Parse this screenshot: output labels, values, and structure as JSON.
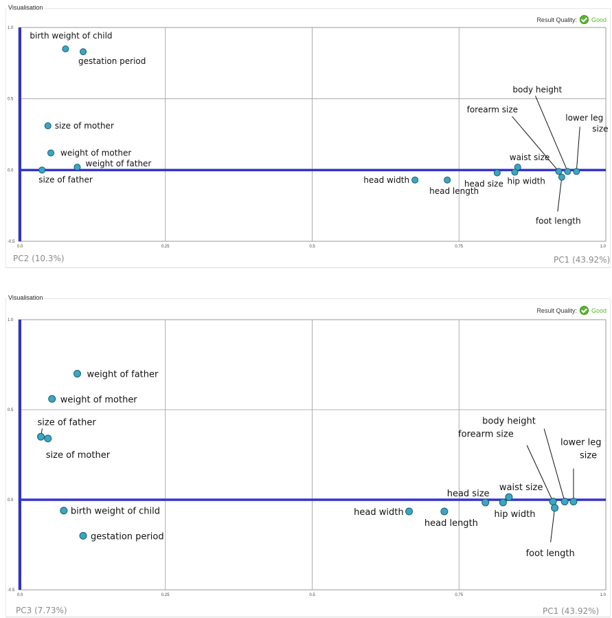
{
  "panels": [
    {
      "title": "Visualisation",
      "quality_label": "Result Quality:",
      "quality_value": "Good",
      "x_axis_label": "PC1 (43.92%)",
      "y_axis_label": "PC2 (10.3%)"
    },
    {
      "title": "Visualisation",
      "quality_label": "Result Quality:",
      "quality_value": "Good",
      "x_axis_label": "PC1 (43.92%)",
      "y_axis_label": "PC3 (7.73%)"
    }
  ],
  "colors": {
    "point": "#3aa6c4",
    "axis": "#3333cc",
    "grid": "#9a9a9a",
    "check": "#5bb62f"
  },
  "chart_data": [
    {
      "type": "scatter",
      "title": "",
      "xlabel": "PC1 (43.92%)",
      "ylabel": "PC2 (10.3%)",
      "xlim": [
        0,
        1
      ],
      "ylim": [
        -0.5,
        1.0
      ],
      "xticks": [
        "0.0",
        "0.25",
        "0.5",
        "0.75",
        "1.0"
      ],
      "yticks": [
        "-0.5",
        "0.0",
        "0.5",
        "1.0"
      ],
      "grid": true,
      "points": [
        {
          "label": "birth weight of child",
          "x": 0.08,
          "y": 0.85
        },
        {
          "label": "gestation period",
          "x": 0.11,
          "y": 0.83
        },
        {
          "label": "size of mother",
          "x": 0.05,
          "y": 0.31
        },
        {
          "label": "weight of mother",
          "x": 0.055,
          "y": 0.12
        },
        {
          "label": "weight of father",
          "x": 0.1,
          "y": 0.02
        },
        {
          "label": "size of father",
          "x": 0.04,
          "y": 0.0
        },
        {
          "label": "head width",
          "x": 0.675,
          "y": -0.07
        },
        {
          "label": "head length",
          "x": 0.73,
          "y": -0.07
        },
        {
          "label": "head size",
          "x": 0.815,
          "y": -0.02
        },
        {
          "label": "waist size",
          "x": 0.85,
          "y": 0.02
        },
        {
          "label": "hip width",
          "x": 0.845,
          "y": -0.015
        },
        {
          "label": "forearm size",
          "x": 0.92,
          "y": -0.01
        },
        {
          "label": "body height",
          "x": 0.935,
          "y": -0.01
        },
        {
          "label": "lower leg size",
          "x": 0.95,
          "y": -0.01
        },
        {
          "label": "foot length",
          "x": 0.925,
          "y": -0.05
        }
      ]
    },
    {
      "type": "scatter",
      "title": "",
      "xlabel": "PC1 (43.92%)",
      "ylabel": "PC3 (7.73%)",
      "xlim": [
        0,
        1
      ],
      "ylim": [
        -0.5,
        1.0
      ],
      "xticks": [
        "0.0",
        "0.25",
        "0.5",
        "0.75",
        "1.0"
      ],
      "yticks": [
        "-0.5",
        "0.0",
        "0.5",
        "1.0"
      ],
      "grid": true,
      "points": [
        {
          "label": "weight of father",
          "x": 0.1,
          "y": 0.7
        },
        {
          "label": "weight of mother",
          "x": 0.057,
          "y": 0.56
        },
        {
          "label": "size of father",
          "x": 0.038,
          "y": 0.35
        },
        {
          "label": "size of mother",
          "x": 0.05,
          "y": 0.34
        },
        {
          "label": "birth weight of child",
          "x": 0.077,
          "y": -0.06
        },
        {
          "label": "gestation period",
          "x": 0.11,
          "y": -0.2
        },
        {
          "label": "head width",
          "x": 0.665,
          "y": -0.065
        },
        {
          "label": "head length",
          "x": 0.725,
          "y": -0.065
        },
        {
          "label": "head size",
          "x": 0.795,
          "y": -0.015
        },
        {
          "label": "waist size",
          "x": 0.835,
          "y": 0.015
        },
        {
          "label": "hip width",
          "x": 0.825,
          "y": -0.015
        },
        {
          "label": "forearm size",
          "x": 0.91,
          "y": -0.01
        },
        {
          "label": "body height",
          "x": 0.93,
          "y": -0.01
        },
        {
          "label": "lower leg size",
          "x": 0.945,
          "y": -0.01
        },
        {
          "label": "foot length",
          "x": 0.913,
          "y": -0.045
        }
      ]
    }
  ]
}
